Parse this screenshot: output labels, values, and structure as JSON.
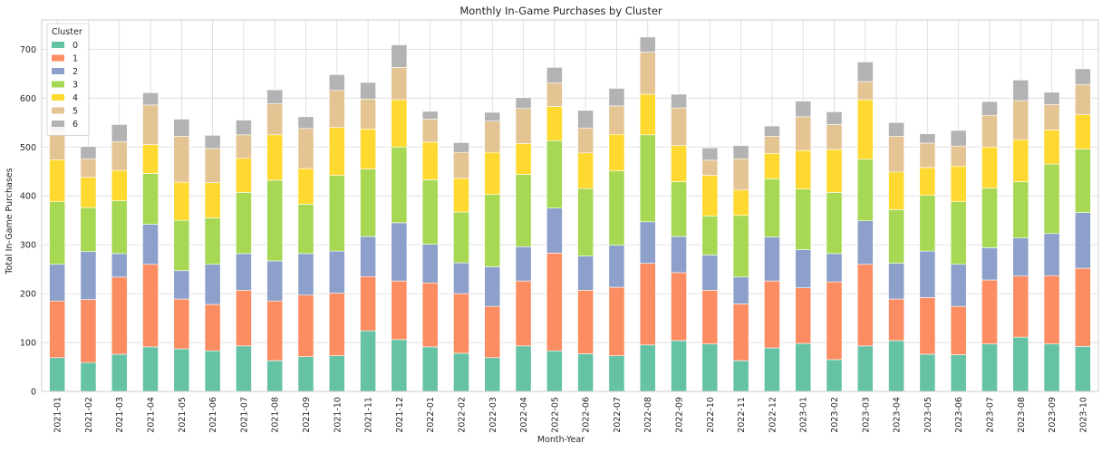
{
  "chart_data": {
    "type": "bar",
    "stacked": true,
    "title": "Monthly In-Game Purchases by Cluster",
    "xlabel": "Month-Year",
    "ylabel": "Total In-Game Purchases",
    "ylim": [
      0,
      760
    ],
    "yticks": [
      0,
      100,
      200,
      300,
      400,
      500,
      600,
      700
    ],
    "grid": true,
    "legend": {
      "title": "Cluster",
      "position": "top-left"
    },
    "categories": [
      "2021-01",
      "2021-02",
      "2021-03",
      "2021-04",
      "2021-05",
      "2021-06",
      "2021-07",
      "2021-08",
      "2021-09",
      "2021-10",
      "2021-11",
      "2021-12",
      "2022-01",
      "2022-02",
      "2022-03",
      "2022-04",
      "2022-05",
      "2022-06",
      "2022-07",
      "2022-08",
      "2022-09",
      "2022-10",
      "2022-11",
      "2022-12",
      "2023-01",
      "2023-02",
      "2023-03",
      "2023-04",
      "2023-05",
      "2023-06",
      "2023-07",
      "2023-08",
      "2023-09",
      "2023-10"
    ],
    "series": [
      {
        "name": "0",
        "color": "#66c2a5",
        "values": [
          69,
          59,
          76,
          91,
          87,
          83,
          93,
          63,
          71,
          73,
          124,
          106,
          91,
          78,
          69,
          93,
          83,
          77,
          73,
          95,
          104,
          97,
          63,
          89,
          98,
          65,
          93,
          104,
          76,
          75,
          97,
          111,
          97,
          92
        ]
      },
      {
        "name": "1",
        "color": "#fc8d62",
        "values": [
          116,
          129,
          158,
          169,
          102,
          95,
          114,
          122,
          126,
          128,
          111,
          120,
          131,
          122,
          105,
          133,
          200,
          130,
          140,
          167,
          139,
          110,
          116,
          137,
          114,
          159,
          167,
          85,
          116,
          99,
          131,
          125,
          140,
          160
        ]
      },
      {
        "name": "2",
        "color": "#8da0cb",
        "values": [
          75,
          98,
          48,
          82,
          58,
          82,
          75,
          82,
          85,
          86,
          82,
          119,
          79,
          63,
          81,
          70,
          92,
          70,
          86,
          85,
          74,
          72,
          55,
          90,
          78,
          58,
          89,
          73,
          95,
          86,
          66,
          78,
          86,
          114
        ]
      },
      {
        "name": "3",
        "color": "#a6d854",
        "values": [
          128,
          90,
          108,
          104,
          103,
          95,
          125,
          165,
          101,
          155,
          138,
          155,
          132,
          104,
          148,
          148,
          138,
          138,
          152,
          178,
          112,
          80,
          126,
          119,
          124,
          125,
          126,
          110,
          114,
          128,
          122,
          115,
          142,
          130
        ]
      },
      {
        "name": "4",
        "color": "#ffd92f",
        "values": [
          86,
          62,
          62,
          59,
          78,
          72,
          70,
          93,
          73,
          98,
          82,
          97,
          77,
          69,
          86,
          63,
          70,
          73,
          75,
          83,
          74,
          83,
          52,
          52,
          79,
          88,
          122,
          77,
          57,
          73,
          84,
          86,
          70,
          70
        ]
      },
      {
        "name": "5",
        "color": "#e5c494",
        "values": [
          59,
          38,
          59,
          81,
          94,
          70,
          48,
          64,
          82,
          76,
          61,
          66,
          47,
          53,
          64,
          72,
          48,
          51,
          58,
          86,
          77,
          31,
          64,
          35,
          69,
          51,
          37,
          73,
          50,
          41,
          65,
          80,
          52,
          62
        ]
      },
      {
        "name": "6",
        "color": "#b3b3b3",
        "values": [
          17,
          25,
          35,
          25,
          35,
          27,
          30,
          28,
          24,
          32,
          34,
          46,
          16,
          20,
          18,
          22,
          32,
          36,
          36,
          31,
          28,
          25,
          27,
          21,
          32,
          26,
          40,
          28,
          19,
          32,
          28,
          42,
          25,
          32
        ]
      }
    ]
  }
}
